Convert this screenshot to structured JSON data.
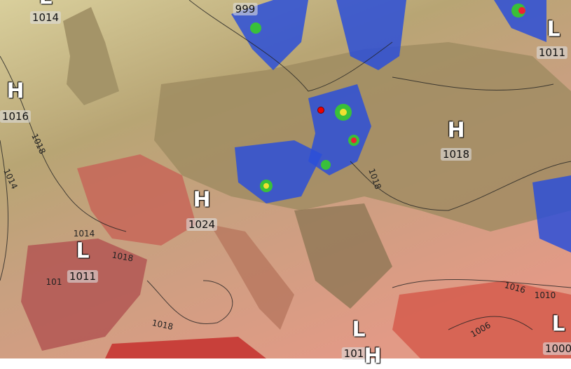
{
  "pressure_centers": [
    {
      "type": "L",
      "value": "1014"
    },
    {
      "type": "",
      "value": "999"
    },
    {
      "type": "L",
      "value": "1011"
    },
    {
      "type": "H",
      "value": "1016"
    },
    {
      "type": "H",
      "value": "1018"
    },
    {
      "type": "H",
      "value": "1024"
    },
    {
      "type": "L",
      "value": "1011"
    },
    {
      "type": "L",
      "value": "101"
    },
    {
      "type": "H",
      "value": ""
    },
    {
      "type": "L",
      "value": "1000"
    }
  ],
  "isobar_labels": [
    "1018",
    "1014",
    "1014",
    "1018",
    "101",
    "1018",
    "1016",
    "1010",
    "1006",
    "1018"
  ],
  "colors": {
    "sea": "#d8cc9a",
    "land_north": "#9a8a62",
    "land_south": "#e0907a",
    "heat": "#c8453a",
    "precip_blue": "#2b4fd8",
    "precip_green": "#39c03a",
    "precip_yellow": "#f0e030",
    "marker": "#e00000"
  }
}
